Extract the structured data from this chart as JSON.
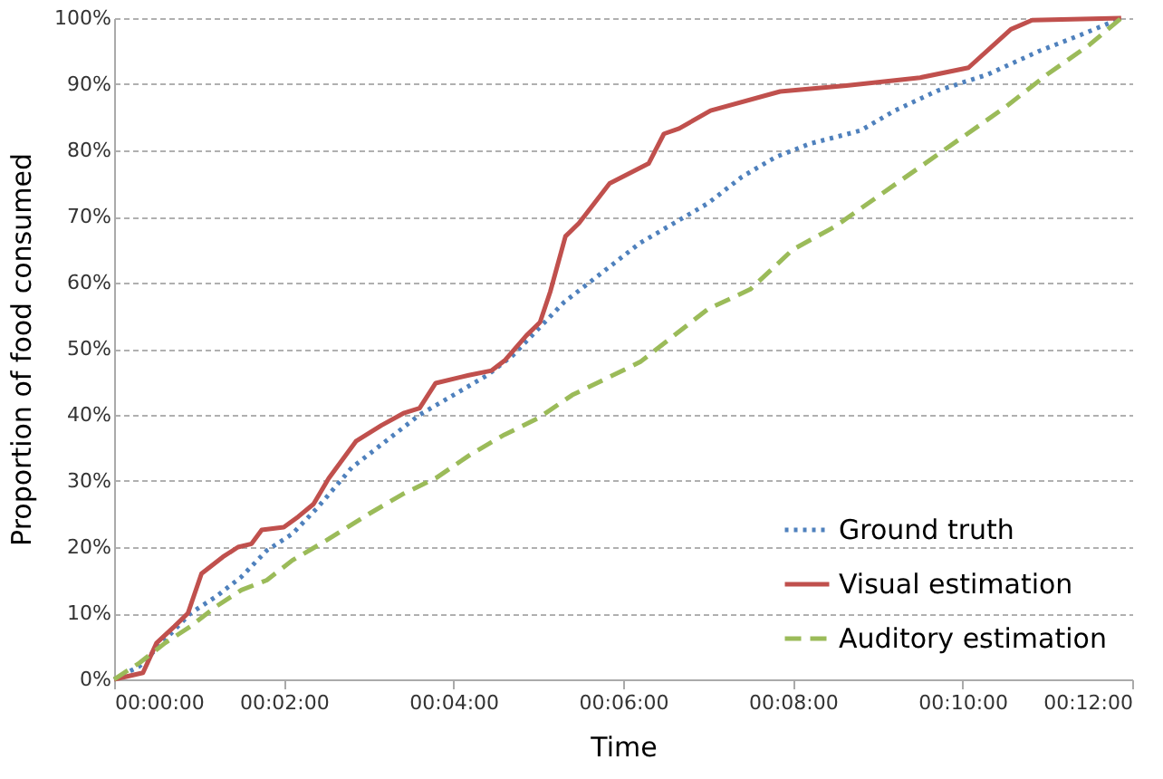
{
  "chart_data": {
    "type": "line",
    "xlabel": "Time",
    "ylabel": "Proportion of food consumed",
    "xlim": [
      0,
      12
    ],
    "xticks": [
      {
        "value": 0,
        "label": "00:00:00"
      },
      {
        "value": 2,
        "label": "00:02:00"
      },
      {
        "value": 4,
        "label": "00:04:00"
      },
      {
        "value": 6,
        "label": "00:06:00"
      },
      {
        "value": 8,
        "label": "00:08:00"
      },
      {
        "value": 10,
        "label": "00:10:00"
      },
      {
        "value": 12,
        "label": "00:12:00"
      }
    ],
    "ylim": [
      0,
      100
    ],
    "yticks": [
      {
        "value": 0,
        "label": "0%"
      },
      {
        "value": 10,
        "label": "10%"
      },
      {
        "value": 20,
        "label": "20%"
      },
      {
        "value": 30,
        "label": "30%"
      },
      {
        "value": 40,
        "label": "40%"
      },
      {
        "value": 50,
        "label": "50%"
      },
      {
        "value": 60,
        "label": "60%"
      },
      {
        "value": 70,
        "label": "70%"
      },
      {
        "value": 80,
        "label": "80%"
      },
      {
        "value": 90,
        "label": "90%"
      },
      {
        "value": 100,
        "label": "100%"
      }
    ],
    "grid": "y",
    "legend": "bottom right",
    "series": [
      {
        "name": "Ground truth",
        "color": "#4f81bd",
        "line_style": "dotted",
        "x": [
          0,
          0.3,
          0.6,
          0.9,
          1.2,
          1.5,
          1.8,
          2.1,
          2.4,
          2.8,
          3.2,
          3.6,
          4.0,
          4.4,
          4.7,
          5.0,
          5.3,
          5.6,
          5.9,
          6.2,
          6.6,
          7.0,
          7.4,
          7.8,
          8.2,
          8.8,
          9.2,
          9.7,
          10.3,
          10.9,
          11.4,
          11.87
        ],
        "values": [
          0,
          2,
          6,
          10,
          12.5,
          15.5,
          19.5,
          22,
          26,
          32,
          36,
          40,
          43,
          46,
          49,
          53,
          57,
          60,
          63,
          66,
          69,
          72,
          76,
          79,
          81,
          83,
          86,
          89,
          91.5,
          95,
          97.5,
          100
        ]
      },
      {
        "name": "Visual estimation",
        "color": "#c0504d",
        "line_style": "solid",
        "x": [
          0,
          0.34,
          0.5,
          0.71,
          0.87,
          1.03,
          1.28,
          1.46,
          1.62,
          1.74,
          2.0,
          2.17,
          2.35,
          2.53,
          2.85,
          3.15,
          3.42,
          3.6,
          3.79,
          4.18,
          4.45,
          4.61,
          4.86,
          5.02,
          5.14,
          5.32,
          5.48,
          5.84,
          6.07,
          6.3,
          6.48,
          6.66,
          7.03,
          7.85,
          8.63,
          9.5,
          10.07,
          10.57,
          10.82,
          11.87
        ],
        "values": [
          0,
          1,
          5.5,
          8,
          10,
          16,
          18.5,
          20,
          20.5,
          22.6,
          23,
          24.6,
          26.5,
          30.4,
          36,
          38.4,
          40.3,
          41,
          44.8,
          46,
          46.7,
          48.3,
          52,
          54,
          58.6,
          67,
          69,
          75,
          76.5,
          78,
          82.5,
          83.3,
          86,
          88.9,
          89.8,
          91,
          92.5,
          98.3,
          99.7,
          100
        ]
      },
      {
        "name": "Auditory estimation",
        "color": "#9bbb59",
        "line_style": "dashed",
        "x": [
          0,
          0.3,
          0.6,
          0.9,
          1.2,
          1.5,
          1.8,
          2.1,
          2.5,
          3.0,
          3.4,
          3.8,
          4.2,
          4.6,
          5.0,
          5.4,
          5.8,
          6.2,
          6.6,
          7.0,
          7.5,
          8.0,
          8.5,
          9.0,
          9.5,
          10.0,
          10.5,
          11.0,
          11.5,
          11.87
        ],
        "values": [
          0,
          2.5,
          5.5,
          8,
          11,
          13.5,
          15,
          18,
          21,
          25,
          28,
          30.5,
          34,
          37,
          39.5,
          43,
          45.5,
          48,
          52,
          56,
          59,
          65,
          68.5,
          73,
          77.5,
          82,
          86.5,
          91.5,
          96,
          100
        ]
      }
    ]
  }
}
